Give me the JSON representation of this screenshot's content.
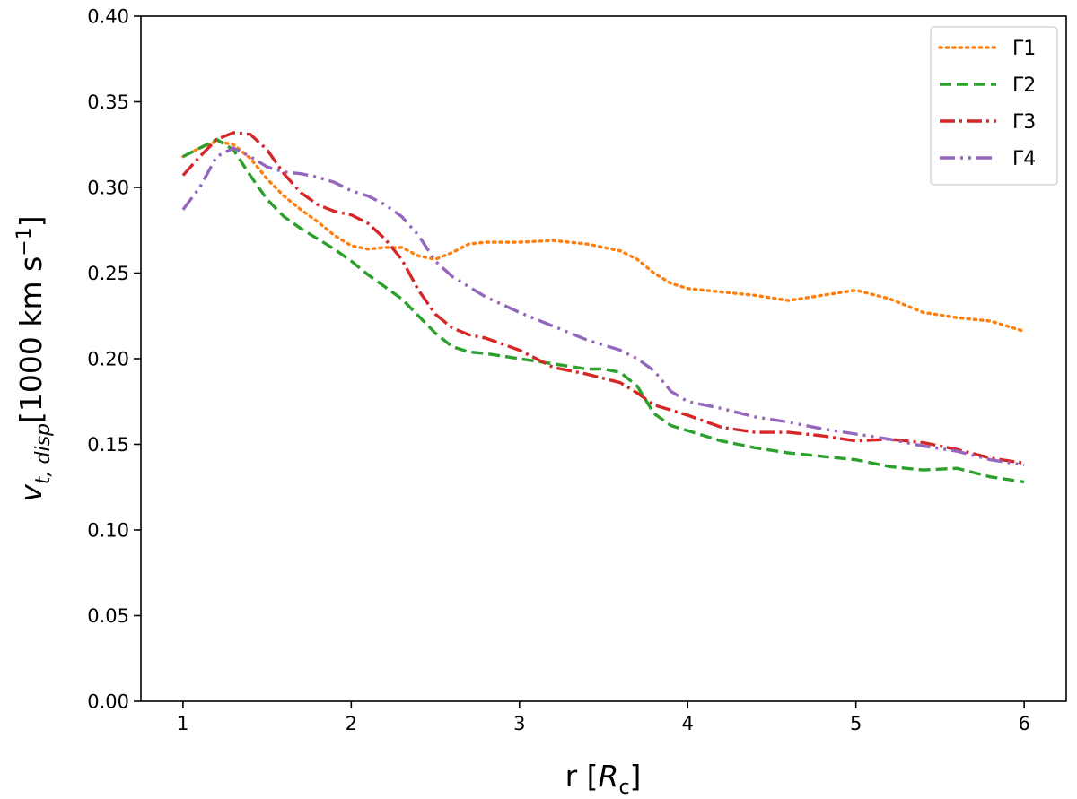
{
  "chart_data": {
    "type": "line",
    "title": "",
    "xlabel_main": "r [",
    "xlabel_sym": "R",
    "xlabel_sub": "c",
    "xlabel_end": "]",
    "ylabel_main": "v",
    "ylabel_sub": "t, disp",
    "ylabel_unit": "[1000 km s",
    "ylabel_sup": "−1",
    "ylabel_end": "]",
    "xlim": [
      0.75,
      6.25
    ],
    "ylim": [
      0.0,
      0.4
    ],
    "x_ticks": [
      1,
      2,
      3,
      4,
      5,
      6
    ],
    "x_tick_labels": [
      "1",
      "2",
      "3",
      "4",
      "5",
      "6"
    ],
    "y_ticks": [
      0.0,
      0.05,
      0.1,
      0.15,
      0.2,
      0.25,
      0.3,
      0.35,
      0.4
    ],
    "y_tick_labels": [
      "0.00",
      "0.05",
      "0.10",
      "0.15",
      "0.20",
      "0.25",
      "0.30",
      "0.35",
      "0.40"
    ],
    "grid": false,
    "legend_position": "top-right",
    "series": [
      {
        "name": "Γ1",
        "color": "#ff7f0e",
        "style": "dotted",
        "x": [
          1.0,
          1.1,
          1.2,
          1.3,
          1.4,
          1.5,
          1.6,
          1.7,
          1.8,
          1.9,
          2.0,
          2.1,
          2.2,
          2.3,
          2.4,
          2.5,
          2.6,
          2.7,
          2.8,
          3.0,
          3.2,
          3.4,
          3.6,
          3.7,
          3.8,
          3.9,
          4.0,
          4.2,
          4.4,
          4.6,
          4.8,
          5.0,
          5.2,
          5.4,
          5.6,
          5.8,
          6.0
        ],
        "y": [
          0.318,
          0.323,
          0.327,
          0.325,
          0.317,
          0.305,
          0.295,
          0.287,
          0.28,
          0.272,
          0.266,
          0.264,
          0.265,
          0.265,
          0.26,
          0.258,
          0.262,
          0.267,
          0.268,
          0.268,
          0.269,
          0.267,
          0.263,
          0.258,
          0.25,
          0.244,
          0.241,
          0.239,
          0.237,
          0.234,
          0.237,
          0.24,
          0.235,
          0.227,
          0.224,
          0.222,
          0.216
        ]
      },
      {
        "name": "Γ2",
        "color": "#2ca02c",
        "style": "dashed",
        "x": [
          1.0,
          1.1,
          1.2,
          1.3,
          1.4,
          1.5,
          1.6,
          1.7,
          1.8,
          1.9,
          2.0,
          2.1,
          2.2,
          2.3,
          2.4,
          2.5,
          2.6,
          2.7,
          2.8,
          3.0,
          3.2,
          3.4,
          3.5,
          3.6,
          3.7,
          3.8,
          3.9,
          4.0,
          4.2,
          4.4,
          4.6,
          4.8,
          5.0,
          5.2,
          5.4,
          5.6,
          5.8,
          6.0
        ],
        "y": [
          0.318,
          0.323,
          0.328,
          0.322,
          0.307,
          0.293,
          0.283,
          0.276,
          0.27,
          0.264,
          0.257,
          0.249,
          0.242,
          0.235,
          0.225,
          0.215,
          0.207,
          0.204,
          0.203,
          0.2,
          0.197,
          0.194,
          0.194,
          0.192,
          0.184,
          0.168,
          0.161,
          0.158,
          0.152,
          0.148,
          0.145,
          0.143,
          0.141,
          0.137,
          0.135,
          0.136,
          0.131,
          0.128
        ]
      },
      {
        "name": "Γ3",
        "color": "#d62728",
        "style": "dashdot",
        "x": [
          1.0,
          1.1,
          1.2,
          1.3,
          1.4,
          1.5,
          1.6,
          1.7,
          1.8,
          1.9,
          2.0,
          2.1,
          2.2,
          2.3,
          2.4,
          2.5,
          2.6,
          2.7,
          2.8,
          3.0,
          3.2,
          3.4,
          3.6,
          3.7,
          3.8,
          3.9,
          4.0,
          4.2,
          4.4,
          4.6,
          4.8,
          5.0,
          5.2,
          5.4,
          5.6,
          5.8,
          6.0
        ],
        "y": [
          0.307,
          0.318,
          0.328,
          0.332,
          0.331,
          0.322,
          0.308,
          0.297,
          0.29,
          0.286,
          0.284,
          0.279,
          0.27,
          0.258,
          0.24,
          0.226,
          0.218,
          0.214,
          0.212,
          0.205,
          0.195,
          0.191,
          0.186,
          0.18,
          0.173,
          0.17,
          0.167,
          0.16,
          0.157,
          0.157,
          0.155,
          0.152,
          0.153,
          0.151,
          0.147,
          0.142,
          0.139
        ]
      },
      {
        "name": "Γ4",
        "color": "#9467bd",
        "style": "dashdotdot",
        "x": [
          1.0,
          1.1,
          1.2,
          1.3,
          1.4,
          1.5,
          1.6,
          1.7,
          1.8,
          1.9,
          2.0,
          2.1,
          2.2,
          2.3,
          2.4,
          2.5,
          2.6,
          2.7,
          2.8,
          3.0,
          3.2,
          3.4,
          3.6,
          3.7,
          3.8,
          3.9,
          4.0,
          4.2,
          4.4,
          4.6,
          4.8,
          5.0,
          5.2,
          5.4,
          5.6,
          5.8,
          6.0
        ],
        "y": [
          0.287,
          0.3,
          0.318,
          0.323,
          0.318,
          0.312,
          0.309,
          0.308,
          0.306,
          0.303,
          0.298,
          0.295,
          0.29,
          0.283,
          0.272,
          0.257,
          0.248,
          0.242,
          0.236,
          0.227,
          0.219,
          0.211,
          0.205,
          0.2,
          0.193,
          0.181,
          0.175,
          0.171,
          0.166,
          0.163,
          0.159,
          0.156,
          0.153,
          0.149,
          0.146,
          0.141,
          0.138
        ]
      }
    ]
  }
}
